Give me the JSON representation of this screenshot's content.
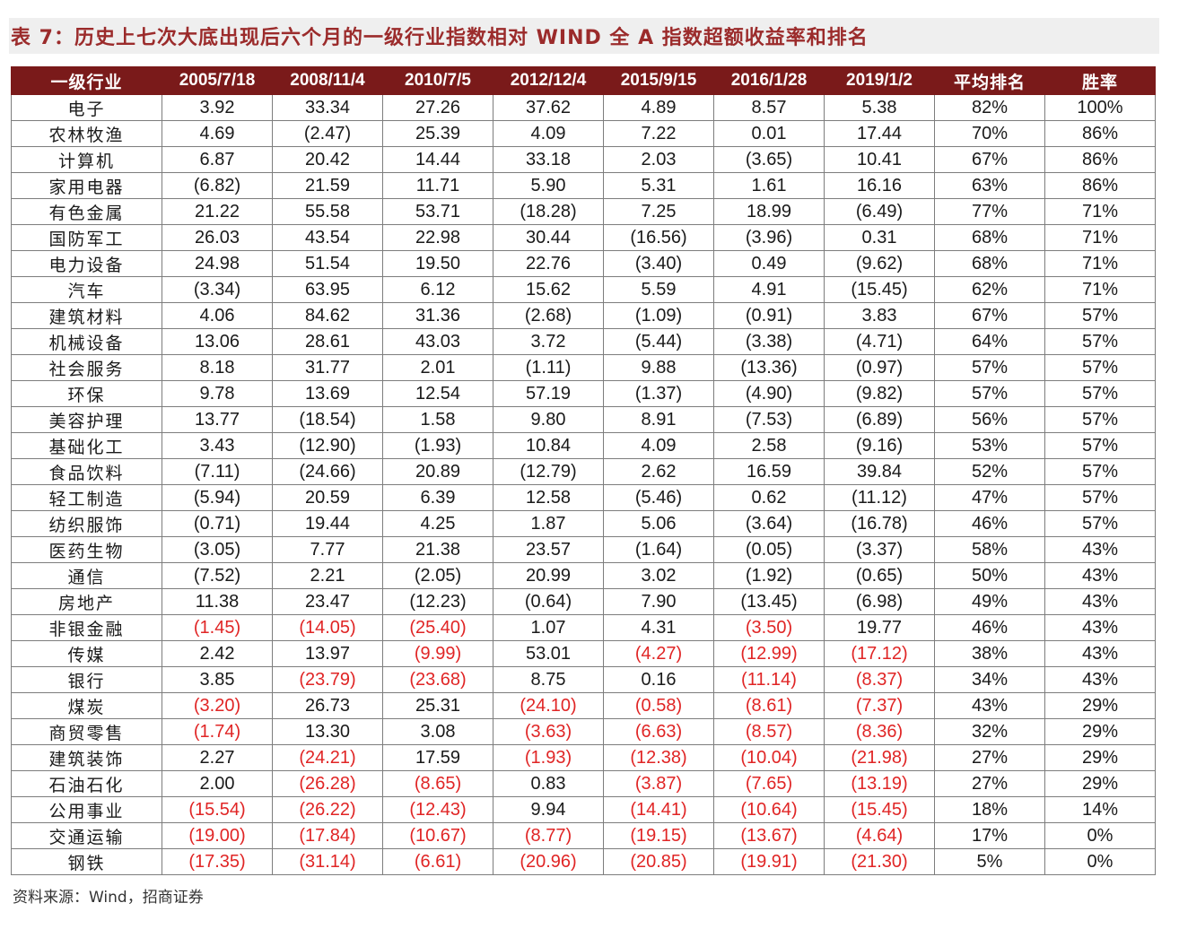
{
  "title": "表 7：历史上七次大底出现后六个月的一级行业指数相对 WIND 全 A 指数超额收益率和排名",
  "header": [
    "一级行业",
    "2005/7/18",
    "2008/11/4",
    "2010/7/5",
    "2012/12/4",
    "2015/9/15",
    "2016/1/28",
    "2019/1/2",
    "平均排名",
    "胜率"
  ],
  "rows": [
    [
      "电子",
      "3.92",
      "33.34",
      "27.26",
      "37.62",
      "4.89",
      "8.57",
      "5.38",
      "82%",
      "100%"
    ],
    [
      "农林牧渔",
      "4.69",
      "(2.47)",
      "25.39",
      "4.09",
      "7.22",
      "0.01",
      "17.44",
      "70%",
      "86%"
    ],
    [
      "计算机",
      "6.87",
      "20.42",
      "14.44",
      "33.18",
      "2.03",
      "(3.65)",
      "10.41",
      "67%",
      "86%"
    ],
    [
      "家用电器",
      "(6.82)",
      "21.59",
      "11.71",
      "5.90",
      "5.31",
      "1.61",
      "16.16",
      "63%",
      "86%"
    ],
    [
      "有色金属",
      "21.22",
      "55.58",
      "53.71",
      "(18.28)",
      "7.25",
      "18.99",
      "(6.49)",
      "77%",
      "71%"
    ],
    [
      "国防军工",
      "26.03",
      "43.54",
      "22.98",
      "30.44",
      "(16.56)",
      "(3.96)",
      "0.31",
      "68%",
      "71%"
    ],
    [
      "电力设备",
      "24.98",
      "51.54",
      "19.50",
      "22.76",
      "(3.40)",
      "0.49",
      "(9.62)",
      "68%",
      "71%"
    ],
    [
      "汽车",
      "(3.34)",
      "63.95",
      "6.12",
      "15.62",
      "5.59",
      "4.91",
      "(15.45)",
      "62%",
      "71%"
    ],
    [
      "建筑材料",
      "4.06",
      "84.62",
      "31.36",
      "(2.68)",
      "(1.09)",
      "(0.91)",
      "3.83",
      "67%",
      "57%"
    ],
    [
      "机械设备",
      "13.06",
      "28.61",
      "43.03",
      "3.72",
      "(5.44)",
      "(3.38)",
      "(4.71)",
      "64%",
      "57%"
    ],
    [
      "社会服务",
      "8.18",
      "31.77",
      "2.01",
      "(1.11)",
      "9.88",
      "(13.36)",
      "(0.97)",
      "57%",
      "57%"
    ],
    [
      "环保",
      "9.78",
      "13.69",
      "12.54",
      "57.19",
      "(1.37)",
      "(4.90)",
      "(9.82)",
      "57%",
      "57%"
    ],
    [
      "美容护理",
      "13.77",
      "(18.54)",
      "1.58",
      "9.80",
      "8.91",
      "(7.53)",
      "(6.89)",
      "56%",
      "57%"
    ],
    [
      "基础化工",
      "3.43",
      "(12.90)",
      "(1.93)",
      "10.84",
      "4.09",
      "2.58",
      "(9.16)",
      "53%",
      "57%"
    ],
    [
      "食品饮料",
      "(7.11)",
      "(24.66)",
      "20.89",
      "(12.79)",
      "2.62",
      "16.59",
      "39.84",
      "52%",
      "57%"
    ],
    [
      "轻工制造",
      "(5.94)",
      "20.59",
      "6.39",
      "12.58",
      "(5.46)",
      "0.62",
      "(11.12)",
      "47%",
      "57%"
    ],
    [
      "纺织服饰",
      "(0.71)",
      "19.44",
      "4.25",
      "1.87",
      "5.06",
      "(3.64)",
      "(16.78)",
      "46%",
      "57%"
    ],
    [
      "医药生物",
      "(3.05)",
      "7.77",
      "21.38",
      "23.57",
      "(1.64)",
      "(0.05)",
      "(3.37)",
      "58%",
      "43%"
    ],
    [
      "通信",
      "(7.52)",
      "2.21",
      "(2.05)",
      "20.99",
      "3.02",
      "(1.92)",
      "(0.65)",
      "50%",
      "43%"
    ],
    [
      "房地产",
      "11.38",
      "23.47",
      "(12.23)",
      "(0.64)",
      "7.90",
      "(13.45)",
      "(6.98)",
      "49%",
      "43%"
    ],
    [
      "非银金融",
      "(1.45)",
      "(14.05)",
      "(25.40)",
      "1.07",
      "4.31",
      "(3.50)",
      "19.77",
      "46%",
      "43%"
    ],
    [
      "传媒",
      "2.42",
      "13.97",
      "(9.99)",
      "53.01",
      "(4.27)",
      "(12.99)",
      "(17.12)",
      "38%",
      "43%"
    ],
    [
      "银行",
      "3.85",
      "(23.79)",
      "(23.68)",
      "8.75",
      "0.16",
      "(11.14)",
      "(8.37)",
      "34%",
      "43%"
    ],
    [
      "煤炭",
      "(3.20)",
      "26.73",
      "25.31",
      "(24.10)",
      "(0.58)",
      "(8.61)",
      "(7.37)",
      "43%",
      "29%"
    ],
    [
      "商贸零售",
      "(1.74)",
      "13.30",
      "3.08",
      "(3.63)",
      "(6.63)",
      "(8.57)",
      "(8.36)",
      "32%",
      "29%"
    ],
    [
      "建筑装饰",
      "2.27",
      "(24.21)",
      "17.59",
      "(1.93)",
      "(12.38)",
      "(10.04)",
      "(21.98)",
      "27%",
      "29%"
    ],
    [
      "石油石化",
      "2.00",
      "(26.28)",
      "(8.65)",
      "0.83",
      "(3.87)",
      "(7.65)",
      "(13.19)",
      "27%",
      "29%"
    ],
    [
      "公用事业",
      "(15.54)",
      "(26.22)",
      "(12.43)",
      "9.94",
      "(14.41)",
      "(10.64)",
      "(15.45)",
      "18%",
      "14%"
    ],
    [
      "交通运输",
      "(19.00)",
      "(17.84)",
      "(10.67)",
      "(8.77)",
      "(19.15)",
      "(13.67)",
      "(4.64)",
      "17%",
      "0%"
    ],
    [
      "钢铁",
      "(17.35)",
      "(31.14)",
      "(6.61)",
      "(20.96)",
      "(20.85)",
      "(19.91)",
      "(21.30)",
      "5%",
      "0%"
    ]
  ],
  "red_from_row": 20,
  "colors": {
    "header_bg": "#7a1a1a",
    "title": "#9b2b2b",
    "negative_highlight": "#e02525"
  },
  "source": "资料来源：Wind，招商证券"
}
